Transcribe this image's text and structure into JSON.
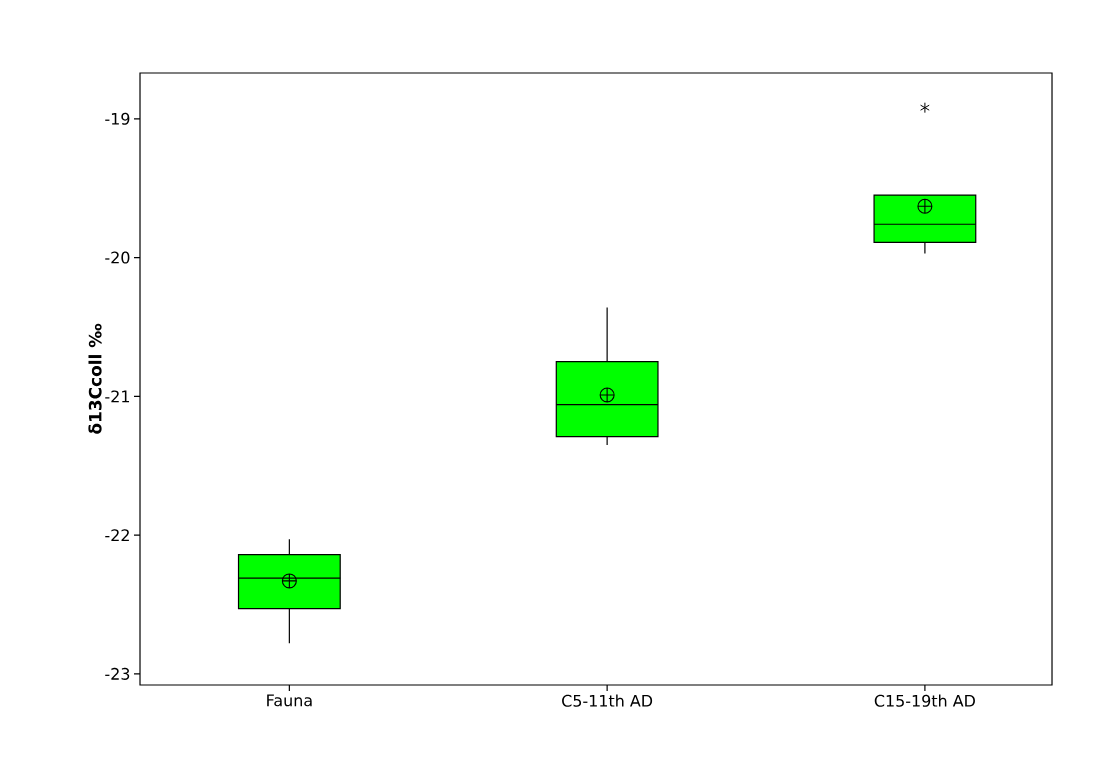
{
  "chart_data": {
    "type": "box",
    "ylabel": "δ13Ccoll ‰",
    "categories": [
      "Fauna",
      "C5-11th AD",
      "C15-19th AD"
    ],
    "ylim": [
      -23.08,
      -18.67
    ],
    "yticks": [
      -23,
      -22,
      -21,
      -20,
      -19
    ],
    "series": [
      {
        "color": "#00ff00",
        "boxes": [
          {
            "low": -22.78,
            "q1": -22.53,
            "median": -22.31,
            "q3": -22.14,
            "high": -22.03,
            "mean": -22.33
          },
          {
            "low": -21.35,
            "q1": -21.29,
            "median": -21.06,
            "q3": -20.75,
            "high": -20.36,
            "mean": -20.99
          },
          {
            "low": -19.97,
            "q1": -19.89,
            "median": -19.76,
            "q3": -19.55,
            "high": -19.55,
            "mean": -19.63,
            "outliers": [
              -18.92
            ]
          }
        ]
      }
    ]
  }
}
